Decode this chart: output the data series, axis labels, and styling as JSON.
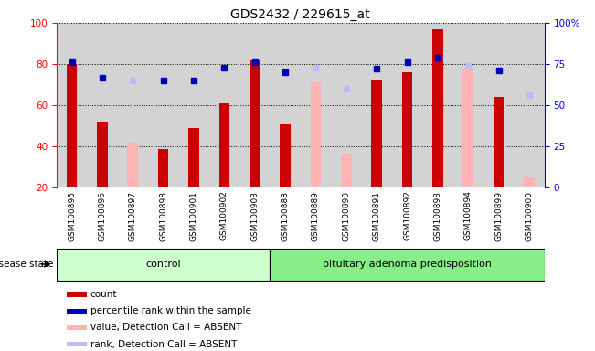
{
  "title": "GDS2432 / 229615_at",
  "samples": [
    "GSM100895",
    "GSM100896",
    "GSM100897",
    "GSM100898",
    "GSM100901",
    "GSM100902",
    "GSM100903",
    "GSM100888",
    "GSM100889",
    "GSM100890",
    "GSM100891",
    "GSM100892",
    "GSM100893",
    "GSM100894",
    "GSM100899",
    "GSM100900"
  ],
  "n_control": 7,
  "count_values": [
    80,
    52,
    null,
    39,
    49,
    61,
    82,
    51,
    null,
    null,
    72,
    76,
    97,
    null,
    64,
    null
  ],
  "count_absent": [
    null,
    null,
    42,
    null,
    null,
    null,
    null,
    null,
    71,
    36,
    null,
    null,
    null,
    78,
    null,
    25
  ],
  "percentile_rank": [
    76,
    67,
    null,
    65,
    65,
    73,
    76,
    70,
    null,
    null,
    72,
    76,
    79,
    null,
    71,
    null
  ],
  "rank_absent": [
    null,
    null,
    65,
    null,
    null,
    null,
    null,
    null,
    73,
    60,
    null,
    null,
    null,
    74,
    null,
    56
  ],
  "ylim_left": [
    20,
    100
  ],
  "ylim_right": [
    0,
    100
  ],
  "left_ticks": [
    20,
    40,
    60,
    80,
    100
  ],
  "right_tick_labels": [
    "0",
    "25",
    "50",
    "75",
    "100%"
  ],
  "right_tick_vals": [
    0,
    25,
    50,
    75,
    100
  ],
  "bar_color_red": "#cc0000",
  "bar_color_pink": "#ffb3b3",
  "dot_color_blue": "#0000bb",
  "dot_color_lightblue": "#bbbbff",
  "bg_color": "#d3d3d3",
  "chart_bg": "#ffffff",
  "group_color_control": "#ccffcc",
  "group_color_pituitary": "#88ee88",
  "legend_items": [
    {
      "color": "#cc0000",
      "label": "count"
    },
    {
      "color": "#0000bb",
      "label": "percentile rank within the sample"
    },
    {
      "color": "#ffb3b3",
      "label": "value, Detection Call = ABSENT"
    },
    {
      "color": "#bbbbff",
      "label": "rank, Detection Call = ABSENT"
    }
  ]
}
